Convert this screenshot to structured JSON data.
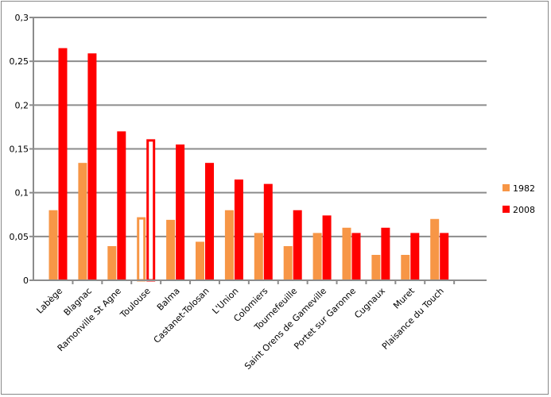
{
  "chart_data": {
    "type": "bar",
    "title": "",
    "xlabel": "",
    "ylabel": "",
    "ylim": [
      0,
      0.3
    ],
    "yticks": [
      "0",
      "0,05",
      "0,1",
      "0,15",
      "0,2",
      "0,25",
      "0,3"
    ],
    "ytick_values": [
      0,
      0.05,
      0.1,
      0.15,
      0.2,
      0.25,
      0.3
    ],
    "grid": true,
    "legend_position": "right",
    "categories": [
      "Labège",
      "Blagnac",
      "Ramonville St Agne",
      "Toulouse",
      "Balma",
      "Castanet-Tolosan",
      "L'Union",
      "Colomiers",
      "Tournefeuille",
      "Saint Orens de Gameville",
      "Portet sur Garonne",
      "Cugnaux",
      "Muret",
      "Plaisance du Touch"
    ],
    "highlighted_category": "Toulouse",
    "series": [
      {
        "name": "1982",
        "color": "#F79646",
        "values": [
          0.08,
          0.134,
          0.039,
          0.072,
          0.069,
          0.044,
          0.08,
          0.054,
          0.039,
          0.054,
          0.06,
          0.029,
          0.029,
          0.07
        ]
      },
      {
        "name": "2008",
        "color": "#FF0000",
        "values": [
          0.265,
          0.259,
          0.17,
          0.161,
          0.155,
          0.134,
          0.115,
          0.11,
          0.08,
          0.074,
          0.054,
          0.06,
          0.054,
          0.054
        ]
      }
    ]
  }
}
